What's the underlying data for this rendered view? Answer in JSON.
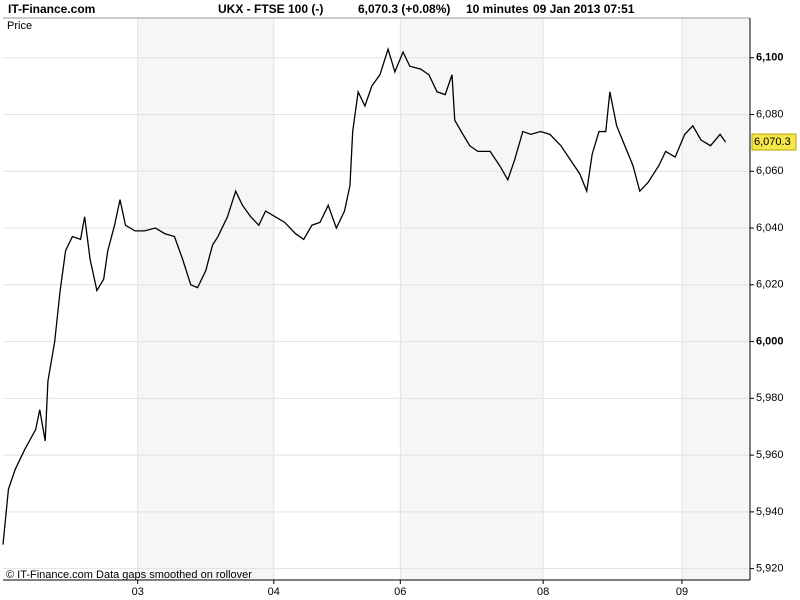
{
  "header": {
    "brand": "IT-Finance.com",
    "instrument": "UKX - FTSE 100 (-)",
    "quote": "6,070.3 (+0.08%)",
    "interval": "10 minutes",
    "timestamp": "09 Jan 2013 07:51"
  },
  "chart_data": {
    "type": "line",
    "ylabel": "Price",
    "footnote": "© IT-Finance.com  Data gaps smoothed on rollover",
    "x": [
      0,
      0.04,
      0.09,
      0.16,
      0.24,
      0.27,
      0.31,
      0.33,
      0.38,
      0.42,
      0.46,
      0.51,
      0.57,
      0.6,
      0.64,
      0.69,
      0.74,
      0.77,
      0.82,
      0.86,
      0.9,
      0.97,
      1.04,
      1.12,
      1.19,
      1.26,
      1.32,
      1.38,
      1.43,
      1.49,
      1.54,
      1.58,
      1.65,
      1.71,
      1.76,
      1.82,
      1.88,
      1.93,
      2.0,
      2.07,
      2.15,
      2.21,
      2.27,
      2.33,
      2.39,
      2.45,
      2.51,
      2.55,
      2.57,
      2.61,
      2.66,
      2.71,
      2.77,
      2.83,
      2.88,
      2.94,
      2.99,
      3.07,
      3.13,
      3.19,
      3.25,
      3.3,
      3.32,
      3.38,
      3.43,
      3.49,
      3.58,
      3.65,
      3.71,
      3.76,
      3.82,
      3.88,
      3.95,
      4.02,
      4.1,
      4.17,
      4.24,
      4.29,
      4.33,
      4.38,
      4.43,
      4.46,
      4.51,
      4.57,
      4.63,
      4.68,
      4.74,
      4.82,
      4.87,
      4.94,
      5.01,
      5.07,
      5.13,
      5.2,
      5.27,
      5.31
    ],
    "series": [
      {
        "name": "UKX",
        "color": "#000000",
        "values": [
          5928.5,
          5948,
          5955,
          5962,
          5969,
          5976,
          5965,
          5986,
          6000,
          6018,
          6032,
          6037,
          6036,
          6044,
          6029,
          6018,
          6022,
          6032,
          6041,
          6050,
          6041,
          6039,
          6039,
          6040,
          6038,
          6037,
          6029,
          6020,
          6019,
          6025,
          6034,
          6037,
          6044,
          6053,
          6048,
          6044,
          6041,
          6046,
          6044,
          6042,
          6038,
          6036,
          6041,
          6042,
          6048,
          6040,
          6046,
          6055,
          6074,
          6088,
          6083,
          6090,
          6094,
          6103,
          6095,
          6102,
          6097,
          6096,
          6094,
          6088,
          6087,
          6094,
          6078,
          6073,
          6069,
          6067,
          6067,
          6062,
          6057,
          6064,
          6074,
          6073,
          6074,
          6073,
          6069,
          6064,
          6059,
          6053,
          6066,
          6074,
          6074,
          6088,
          6076,
          6069,
          6062,
          6053,
          6056,
          6062,
          6067,
          6065,
          6073,
          6076,
          6071,
          6069,
          6073,
          6070.3
        ]
      }
    ],
    "last_price": {
      "value": 6070.3,
      "label": "6,070.3"
    },
    "xlim": [
      0,
      5.49
    ],
    "xticks": [
      {
        "value": 0.99,
        "label": "03"
      },
      {
        "value": 1.99,
        "label": "04"
      },
      {
        "value": 2.92,
        "label": "06"
      },
      {
        "value": 3.97,
        "label": "08"
      },
      {
        "value": 4.99,
        "label": "09"
      }
    ],
    "ylim": [
      5916,
      6114
    ],
    "yticks": [
      {
        "value": 5920,
        "label": "5,920"
      },
      {
        "value": 5940,
        "label": "5,940"
      },
      {
        "value": 5960,
        "label": "5,960"
      },
      {
        "value": 5980,
        "label": "5,980"
      },
      {
        "value": 6000,
        "label": "6,000"
      },
      {
        "value": 6020,
        "label": "6,020"
      },
      {
        "value": 6040,
        "label": "6,040"
      },
      {
        "value": 6060,
        "label": "6,060"
      },
      {
        "value": 6080,
        "label": "6,080"
      },
      {
        "value": 6100,
        "label": "6,100"
      }
    ],
    "grid": true
  }
}
